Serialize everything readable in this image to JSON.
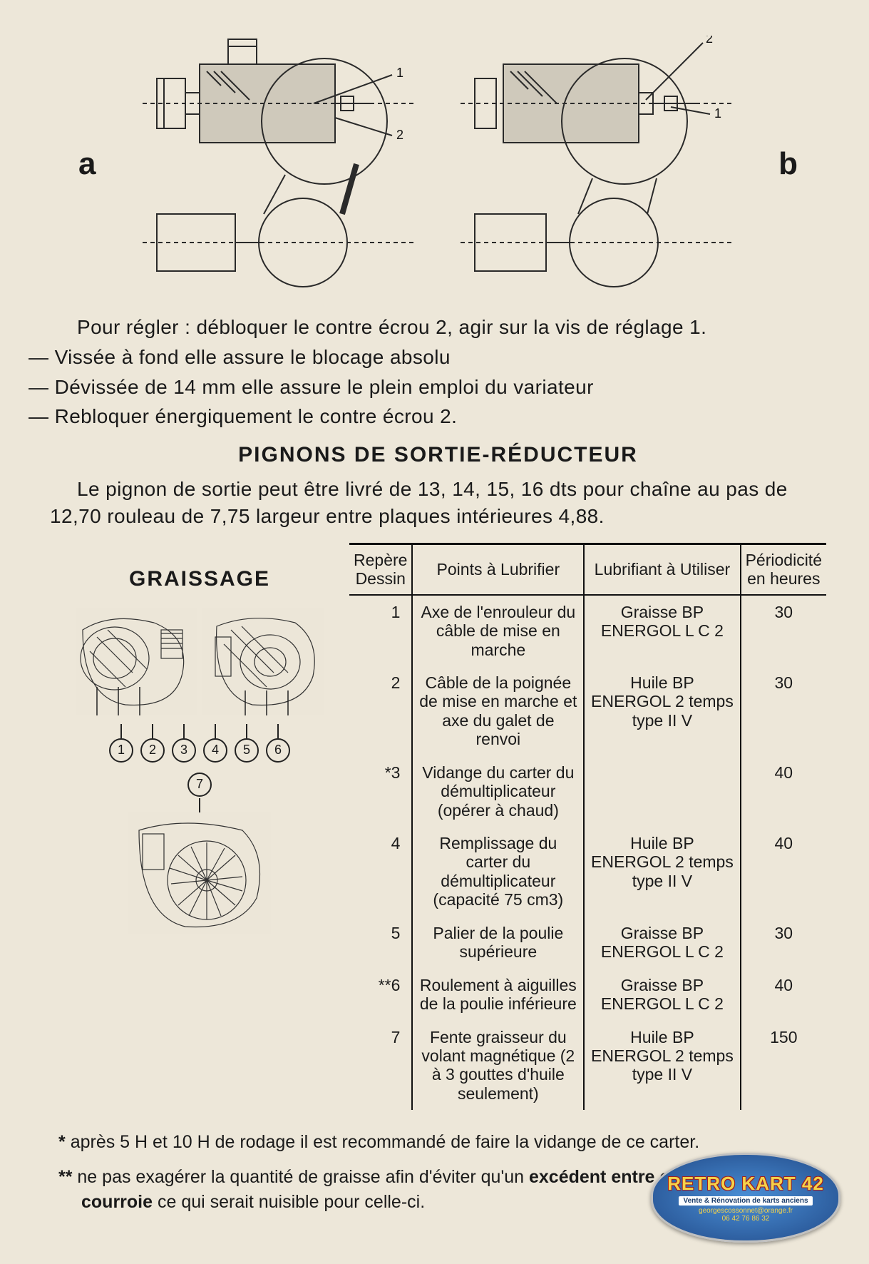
{
  "diagrams": {
    "label_left": "a",
    "label_right": "b",
    "callout_1": "1",
    "callout_2": "2",
    "line_color": "#2a2a2a",
    "stroke_width": 2
  },
  "text": {
    "p1": "Pour régler : débloquer le contre écrou 2, agir sur la vis de réglage 1.",
    "b1": "— Vissée à fond elle assure le blocage absolu",
    "b2": "— Dévissée de 14 mm elle assure le plein emploi du variateur",
    "b3": "— Rebloquer énergiquement le contre écrou 2.",
    "section1_title": "PIGNONS DE SORTIE-RÉDUCTEUR",
    "p2": "Le pignon de sortie peut être livré de 13, 14, 15, 16 dts pour chaîne au pas de 12,70 rouleau de 7,75 largeur entre plaques intérieures 4,88.",
    "section2_title": "GRAISSAGE"
  },
  "figure_callouts": [
    "1",
    "2",
    "3",
    "4",
    "5",
    "6"
  ],
  "figure_callout_7": "7",
  "table": {
    "headers": {
      "repere": "Repère Dessin",
      "points": "Points à Lubrifier",
      "lubrifiant": "Lubrifiant à Utiliser",
      "periodicite": "Périodicité en heures"
    },
    "rows": [
      {
        "rep": "1",
        "pts": "Axe de l'enrouleur du câble de mise en marche",
        "lub": "Graisse BP ENERGOL L C 2",
        "per": "30"
      },
      {
        "rep": "2",
        "pts": "Câble de la poignée de mise en marche et axe du galet de renvoi",
        "lub": "Huile BP ENERGOL 2 temps type II V",
        "per": "30"
      },
      {
        "rep": "*3",
        "pts": "Vidange du carter du démultiplicateur (opérer à chaud)",
        "lub": "",
        "per": "40"
      },
      {
        "rep": "4",
        "pts": "Remplissage du carter du démultiplicateur (capacité 75 cm3)",
        "lub": "Huile BP ENERGOL 2 temps type II V",
        "per": "40"
      },
      {
        "rep": "5",
        "pts": "Palier de la poulie supérieure",
        "lub": "Graisse BP ENERGOL L C 2",
        "per": "30"
      },
      {
        "rep": "**6",
        "pts": "Roulement à aiguilles de la poulie inférieure",
        "lub": "Graisse BP ENERGOL L C 2",
        "per": "40"
      },
      {
        "rep": "7",
        "pts": "Fente graisseur du volant magnétique (2 à 3 gouttes d'huile seulement)",
        "lub": "Huile BP ENERGOL 2 temps type II V",
        "per": "150"
      }
    ]
  },
  "footnotes": {
    "f1_prefix": "* ",
    "f1": "après 5 H et 10 H de rodage il est recommandé de faire la vidange de ce carter.",
    "f2_prefix": "** ",
    "f2a": "ne pas exagérer la quantité de graisse afin d'éviter qu'un ",
    "f2b": "excédent entre en contact avec la courroie",
    "f2c": " ce qui serait nuisible pour celle-ci."
  },
  "logo": {
    "title": "RETRO KART 42",
    "subtitle": "Vente & Rénovation de karts anciens",
    "email": "georgescossonnet@orange.fr",
    "phone": "06 42 76 86 32"
  },
  "colors": {
    "page_bg": "#ede7d9",
    "text": "#1a1a1a",
    "rule": "#111111"
  }
}
